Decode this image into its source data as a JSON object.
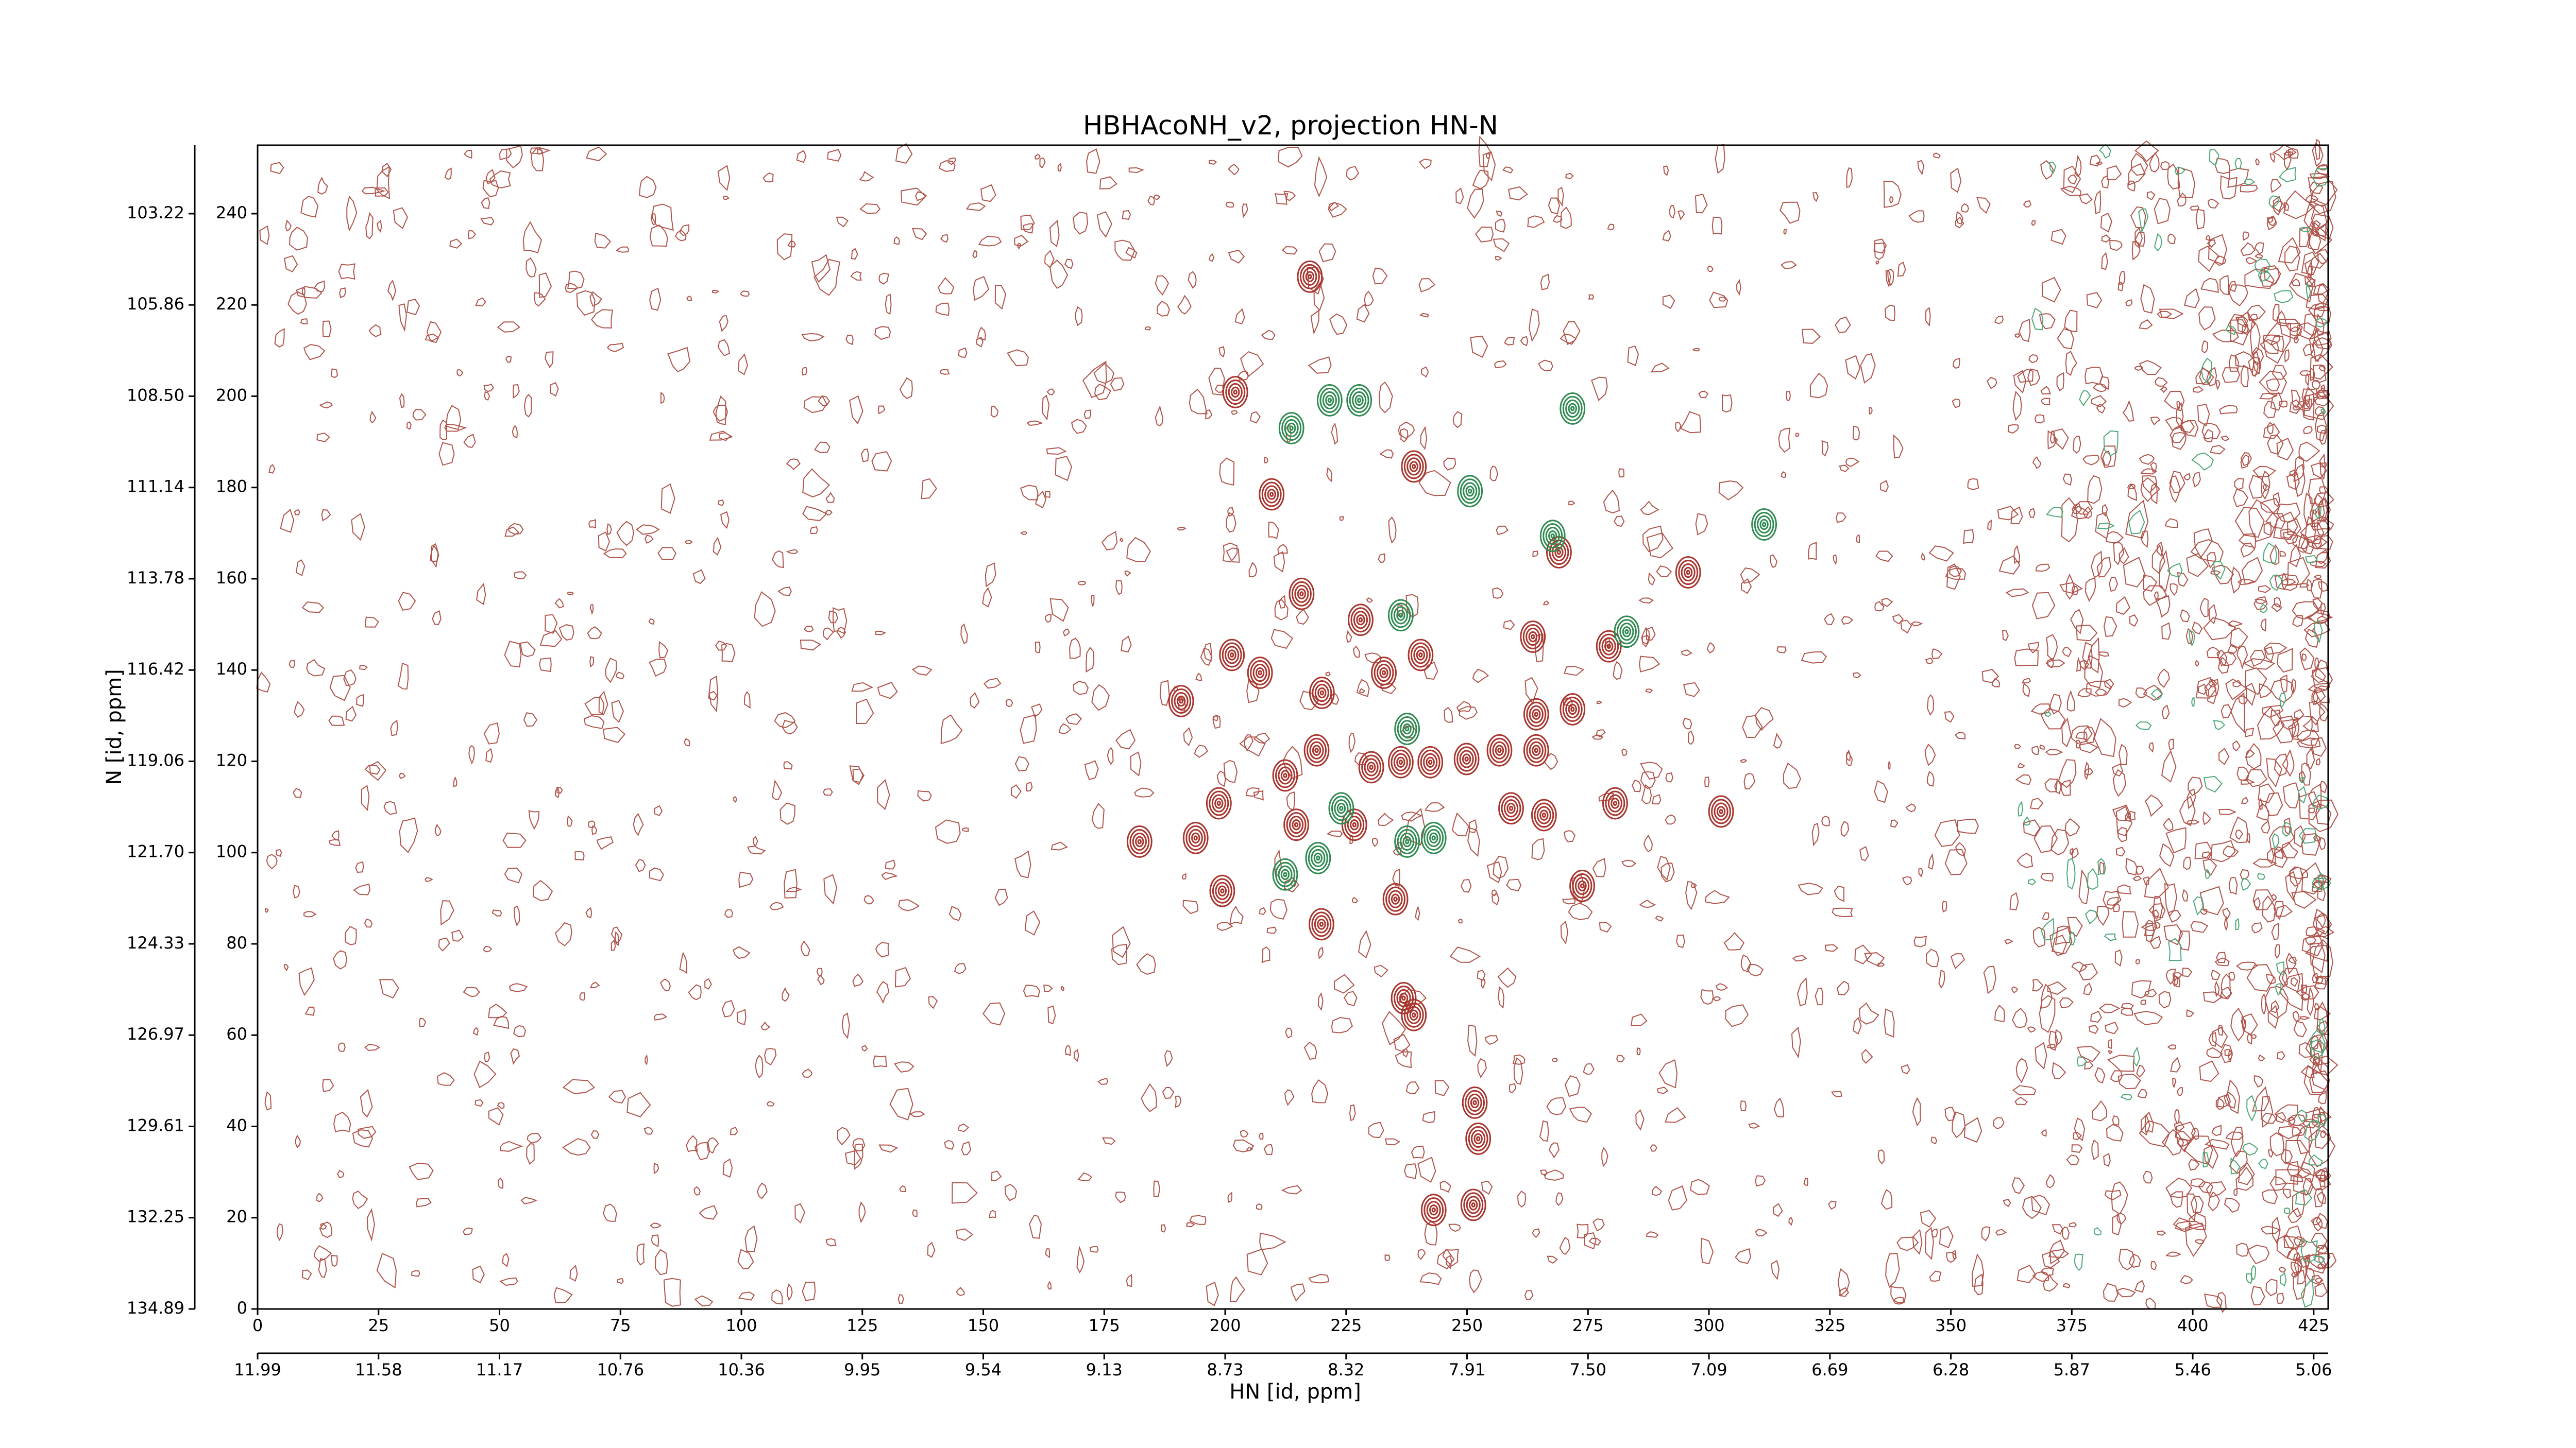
{
  "chart_data": {
    "type": "scatter",
    "title": "HBHAcoNH_v2, projection HN-N",
    "xlabel": "HN [id, ppm]",
    "ylabel": "N [id, ppm]",
    "xlim": [
      0,
      428
    ],
    "ylim": [
      0,
      255
    ],
    "xticks": [
      0,
      25,
      50,
      75,
      100,
      125,
      150,
      175,
      200,
      225,
      250,
      275,
      300,
      325,
      350,
      375,
      400,
      425
    ],
    "yticks": [
      0,
      20,
      40,
      60,
      80,
      100,
      120,
      140,
      160,
      180,
      200,
      220,
      240
    ],
    "x2ticks": [
      {
        "value": 0,
        "label": "11.99"
      },
      {
        "value": 25,
        "label": "11.58"
      },
      {
        "value": 50,
        "label": "11.17"
      },
      {
        "value": 75,
        "label": "10.76"
      },
      {
        "value": 100,
        "label": "10.36"
      },
      {
        "value": 125,
        "label": "9.95"
      },
      {
        "value": 150,
        "label": "9.54"
      },
      {
        "value": 175,
        "label": "9.13"
      },
      {
        "value": 200,
        "label": "8.73"
      },
      {
        "value": 225,
        "label": "8.32"
      },
      {
        "value": 250,
        "label": "7.91"
      },
      {
        "value": 275,
        "label": "7.50"
      },
      {
        "value": 300,
        "label": "7.09"
      },
      {
        "value": 325,
        "label": "6.69"
      },
      {
        "value": 350,
        "label": "6.28"
      },
      {
        "value": 375,
        "label": "5.87"
      },
      {
        "value": 400,
        "label": "5.46"
      },
      {
        "value": 425,
        "label": "5.06"
      }
    ],
    "y2ticks": [
      {
        "value": 0,
        "label": "134.89"
      },
      {
        "value": 20,
        "label": "132.25"
      },
      {
        "value": 40,
        "label": "129.61"
      },
      {
        "value": 60,
        "label": "126.97"
      },
      {
        "value": 80,
        "label": "124.33"
      },
      {
        "value": 100,
        "label": "121.70"
      },
      {
        "value": 120,
        "label": "119.06"
      },
      {
        "value": 140,
        "label": "116.42"
      },
      {
        "value": 160,
        "label": "113.78"
      },
      {
        "value": 180,
        "label": "111.14"
      },
      {
        "value": 200,
        "label": "108.50"
      },
      {
        "value": 220,
        "label": "105.86"
      },
      {
        "value": 240,
        "label": "103.22"
      }
    ],
    "series": [
      {
        "color": "#a8342c",
        "x": [
          217.5,
          202.1,
          239,
          209.6,
          215.8,
          228,
          269,
          295.7,
          201.4,
          207.2,
          190.9,
          240.4,
          263.6,
          279.3,
          264.3,
          271.8,
          220,
          232.8,
          249.9,
          256.7,
          264.3,
          242.4,
          236.3,
          198.7,
          182.3,
          193.9,
          212.4,
          218.9,
          230.2,
          280.6,
          302.5,
          259.1,
          265.9,
          273.8,
          199.4,
          219.9,
          235.2,
          236.9,
          239,
          251.6,
          252.3,
          243.1,
          251.3,
          214.7,
          226.7
        ],
        "values": [
          226.2,
          200.9,
          184.6,
          178.5,
          156.7,
          151,
          165.8,
          161.4,
          143.3,
          139.4,
          133.2,
          143.3,
          147.3,
          145.2,
          130.3,
          131.4,
          135,
          139.4,
          120.5,
          122.4,
          122.4,
          119.8,
          119.8,
          110.8,
          102.4,
          103.2,
          116.9,
          122.4,
          118.7,
          110.8,
          109,
          109.7,
          108.2,
          92.7,
          91.6,
          84.3,
          89.8,
          68.1,
          64.4,
          45.2,
          37.3,
          21.7,
          22.8,
          106.1,
          106.1
        ]
      },
      {
        "color": "#2e8a50",
        "x": [
          213.7,
          221.6,
          227.7,
          271.8,
          250.6,
          236.3,
          237.6,
          224,
          237.6,
          243.1,
          283,
          219.2,
          267.7,
          311.4,
          212.4
        ],
        "values": [
          193,
          199.1,
          199.1,
          197.3,
          179.2,
          152,
          127.1,
          109.7,
          102.4,
          103.2,
          148.4,
          98.8,
          169.4,
          171.9,
          95.2
        ]
      }
    ]
  }
}
